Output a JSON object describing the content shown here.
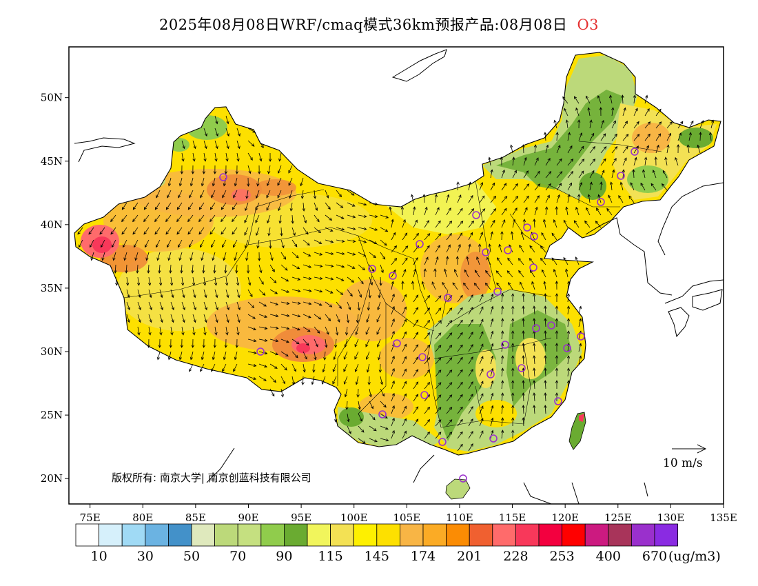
{
  "title": {
    "product": "2025年08月08日WRF/cmaq模式36km预报产品:08月08日",
    "species": "O3"
  },
  "axes": {
    "lon_ticks": [
      "75E",
      "80E",
      "85E",
      "90E",
      "95E",
      "100E",
      "105E",
      "110E",
      "115E",
      "120E",
      "125E",
      "130E",
      "135E"
    ],
    "lat_ticks": [
      "50N",
      "45N",
      "40N",
      "35N",
      "30N",
      "25N",
      "20N"
    ],
    "lon_range": [
      73,
      135
    ],
    "lat_range": [
      18,
      54
    ]
  },
  "wind_scale": {
    "label": "10 m/s"
  },
  "copyright": "版权所有: 南京大学| 南京创蓝科技有限公司",
  "colorbar": {
    "colors": [
      "#ffffff",
      "#d6f0fb",
      "#a0daf5",
      "#6bb3e2",
      "#4391c9",
      "#dfe9bd",
      "#bcd97a",
      "#c5e080",
      "#90cc4c",
      "#6aab31",
      "#f1f55c",
      "#f3e154",
      "#fef000",
      "#fde000",
      "#f8b545",
      "#fbab25",
      "#fb8c04",
      "#f06030",
      "#ff6b6b",
      "#f8385a",
      "#f3003f",
      "#ff0000",
      "#cc1a80",
      "#a8345a",
      "#9a30cc",
      "#8a2be2"
    ],
    "labels": [
      "10",
      "30",
      "50",
      "70",
      "90",
      "115",
      "145",
      "174",
      "201",
      "228",
      "253",
      "400",
      "670"
    ],
    "unit": "(ug/m3)"
  },
  "legend_colors": {
    "green": "#6aab31",
    "lightgreen": "#bcd97a",
    "yellow": "#fef000",
    "lightyellow": "#f1f55c",
    "orange": "#f8b545",
    "darkorange": "#f08c3a",
    "red": "#f3003f",
    "pink": "#ff6b6b",
    "marker": "#9a30cc"
  }
}
